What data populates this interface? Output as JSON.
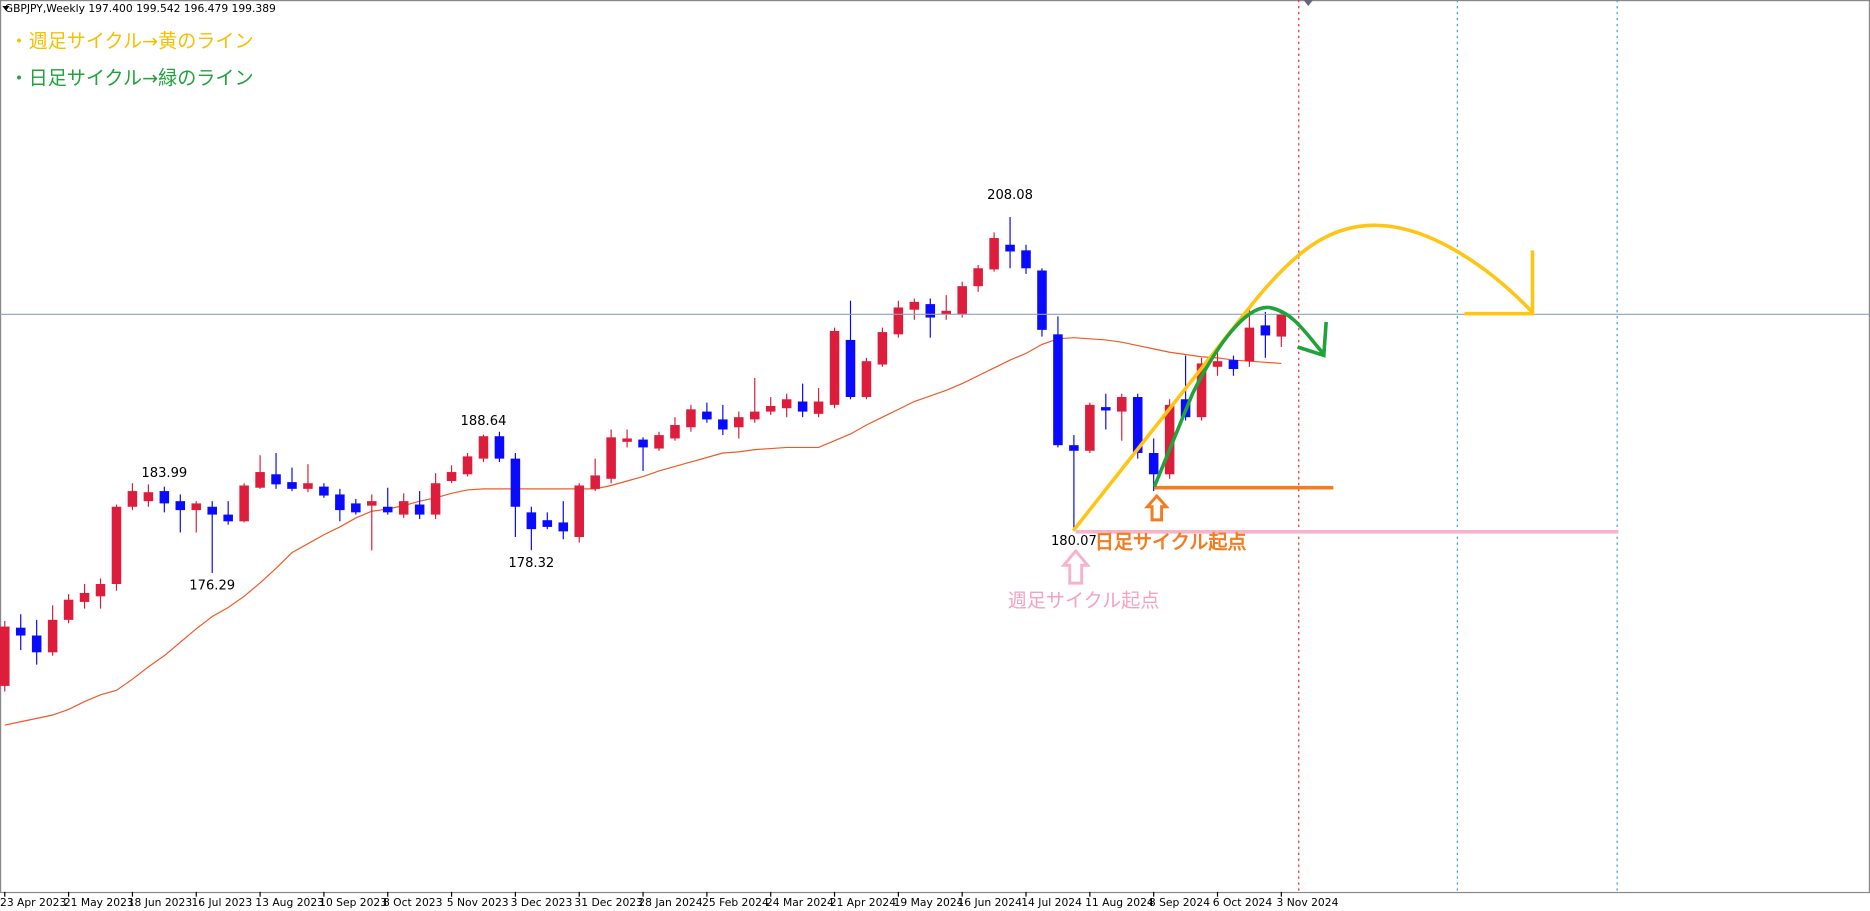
{
  "chart_data": {
    "type": "candlestick",
    "title": "GBPJPY,Weekly  197.400 199.542 196.479 199.389",
    "categories": [
      "23 Apr 2023",
      null,
      null,
      null,
      "21 May 2023",
      null,
      null,
      null,
      "18 Jun 2023",
      null,
      null,
      null,
      "16 Jul 2023",
      null,
      null,
      null,
      "13 Aug 2023",
      null,
      null,
      null,
      "10 Sep 2023",
      null,
      null,
      null,
      "8 Oct 2023",
      null,
      null,
      null,
      "5 Nov 2023",
      null,
      null,
      null,
      "3 Dec 2023",
      null,
      null,
      null,
      "31 Dec 2023",
      null,
      null,
      null,
      "28 Jan 2024",
      null,
      null,
      null,
      "25 Feb 2024",
      null,
      null,
      null,
      "24 Mar 2024",
      null,
      null,
      null,
      "21 Apr 2024",
      null,
      null,
      null,
      "19 May 2024",
      null,
      null,
      null,
      "16 Jun 2024",
      null,
      null,
      null,
      "14 Jul 2024",
      null,
      null,
      null,
      "11 Aug 2024",
      null,
      null,
      null,
      "8 Sep 2024",
      null,
      null,
      null,
      "6 Oct 2024",
      null,
      null,
      null,
      "3 Nov 2024"
    ],
    "open": [
      166.2,
      171.4,
      170.7,
      169.2,
      172.1,
      173.7,
      174.2,
      175.3,
      182.2,
      182.7,
      183.6,
      182.7,
      181.9,
      182.2,
      181.5,
      180.9,
      183.9,
      185.1,
      184.4,
      183.8,
      184.0,
      183.3,
      182.5,
      182.3,
      182.2,
      181.5,
      182.4,
      181.5,
      184.5,
      185.1,
      186.5,
      188.5,
      186.5,
      181.7,
      181.0,
      180.8,
      179.5,
      183.8,
      184.7,
      188.0,
      188.2,
      187.4,
      188.3,
      189.3,
      190.7,
      190.0,
      189.3,
      190.0,
      190.7,
      191.0,
      191.6,
      190.5,
      191.3,
      197.1,
      192.0,
      194.9,
      197.6,
      199.8,
      200.3,
      199.4,
      199.4,
      201.9,
      203.4,
      205.6,
      205.1,
      203.3,
      197.6,
      187.7,
      187.2,
      191.1,
      190.7,
      192.0,
      187.0,
      185.1,
      191.8,
      190.2,
      194.7,
      195.3,
      195.2,
      198.4,
      197.4
    ],
    "high": [
      172.0,
      172.6,
      172.1,
      173.4,
      174.4,
      175.3,
      175.8,
      182.4,
      184.3,
      184.2,
      183.99,
      183.3,
      182.7,
      182.7,
      182.7,
      184.3,
      186.8,
      187.0,
      185.7,
      186.0,
      184.3,
      183.8,
      182.9,
      183.3,
      183.9,
      183.4,
      183.6,
      185.2,
      185.9,
      187.0,
      188.64,
      188.9,
      187.0,
      182.2,
      181.7,
      182.7,
      184.3,
      186.5,
      189.1,
      189.1,
      188.4,
      188.9,
      190.2,
      191.3,
      191.5,
      191.3,
      190.7,
      193.7,
      192.0,
      192.3,
      193.2,
      192.8,
      198.2,
      200.6,
      195.5,
      198.2,
      200.6,
      200.8,
      200.8,
      201.1,
      202.3,
      203.8,
      206.7,
      208.08,
      205.6,
      203.5,
      199.2,
      188.6,
      191.5,
      192.3,
      192.3,
      192.3,
      188.3,
      191.8,
      195.7,
      195.5,
      196.0,
      195.7,
      199.8,
      199.6,
      199.542
    ],
    "low": [
      165.7,
      169.4,
      168.1,
      168.9,
      171.8,
      173.1,
      173.1,
      174.7,
      181.9,
      182.2,
      181.7,
      179.9,
      179.9,
      176.29,
      180.6,
      180.8,
      183.8,
      183.8,
      183.6,
      183.5,
      183.0,
      180.9,
      181.5,
      178.3,
      181.5,
      181.2,
      181.1,
      181.1,
      184.3,
      184.9,
      186.2,
      186.2,
      179.5,
      178.32,
      180.2,
      179.3,
      179.0,
      183.6,
      184.3,
      187.5,
      185.4,
      187.2,
      188.1,
      188.9,
      189.7,
      188.6,
      188.3,
      189.7,
      190.4,
      190.2,
      190.2,
      190.2,
      191.0,
      191.8,
      191.8,
      194.7,
      197.3,
      198.9,
      197.3,
      198.9,
      199.1,
      201.4,
      203.2,
      203.5,
      203.0,
      197.4,
      187.5,
      180.07,
      187.0,
      189.1,
      188.1,
      186.5,
      183.6,
      184.7,
      189.9,
      189.9,
      193.9,
      193.9,
      194.7,
      195.5,
      196.479
    ],
    "close": [
      171.5,
      170.7,
      169.2,
      172.1,
      173.9,
      174.5,
      175.3,
      182.2,
      183.6,
      183.5,
      182.5,
      181.9,
      182.5,
      181.5,
      180.9,
      184.1,
      185.3,
      184.2,
      183.8,
      184.3,
      183.2,
      181.9,
      181.7,
      182.7,
      181.7,
      182.7,
      181.5,
      184.3,
      185.3,
      186.7,
      188.5,
      186.5,
      182.2,
      180.2,
      180.4,
      180.0,
      184.1,
      185.0,
      188.4,
      188.3,
      187.5,
      188.6,
      189.5,
      190.9,
      190.0,
      189.1,
      190.2,
      190.7,
      191.2,
      191.8,
      190.7,
      191.6,
      197.9,
      192.0,
      195.2,
      197.8,
      200.0,
      200.5,
      199.1,
      199.7,
      201.9,
      203.5,
      206.2,
      205.0,
      203.5,
      198.0,
      187.7,
      187.2,
      191.3,
      190.8,
      192.0,
      187.0,
      185.1,
      191.3,
      190.2,
      195.0,
      195.2,
      194.5,
      198.2,
      197.5,
      199.389
    ],
    "up_color": "#dc1e3c",
    "down_color": "#0a0aff",
    "ma": {
      "color": "#f05a28",
      "values": [
        162.7,
        163.0,
        163.3,
        163.6,
        164.1,
        164.8,
        165.4,
        165.8,
        166.8,
        167.9,
        168.9,
        170.1,
        171.3,
        172.4,
        173.2,
        174.2,
        175.4,
        176.7,
        178.1,
        178.9,
        179.7,
        180.4,
        181.2,
        181.8,
        182.0,
        182.3,
        182.7,
        183.0,
        183.4,
        183.7,
        183.8,
        183.8,
        183.8,
        183.8,
        183.8,
        183.8,
        183.8,
        183.8,
        184.1,
        184.5,
        184.9,
        185.4,
        185.8,
        186.2,
        186.6,
        187.0,
        187.1,
        187.3,
        187.4,
        187.5,
        187.5,
        187.5,
        188.1,
        188.7,
        189.5,
        190.2,
        190.9,
        191.6,
        192.1,
        192.6,
        193.2,
        193.9,
        194.6,
        195.3,
        195.9,
        196.7,
        197.2,
        197.3,
        197.2,
        197.1,
        196.9,
        196.6,
        196.3,
        196.0,
        195.8,
        195.6,
        195.5,
        195.3,
        195.2,
        195.1,
        195.0
      ]
    },
    "ylim": [
      147.8,
      227.46
    ],
    "annotations": {
      "notes": [
        "・週足サイクル→黄のライン",
        "・日足サイクル→緑のライン"
      ],
      "daily_start": "日足サイクル起点",
      "weekly_start": "週足サイクル起点"
    }
  }
}
